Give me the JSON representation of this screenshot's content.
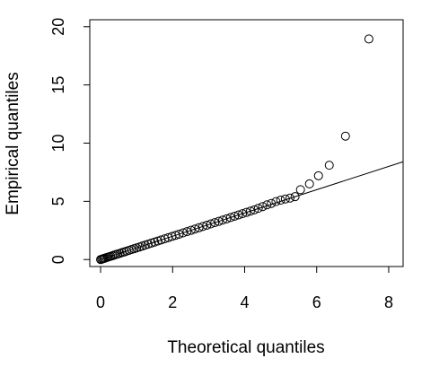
{
  "chart_data": {
    "type": "scatter",
    "title": "",
    "xlabel": "Theoretical quantiles",
    "ylabel": "Empirical quantiles",
    "xlim": [
      -0.3,
      8.4
    ],
    "ylim": [
      -0.6,
      20.6
    ],
    "x_ticks": [
      0,
      2,
      4,
      6,
      8
    ],
    "y_ticks": [
      0,
      5,
      10,
      15,
      20
    ],
    "grid": false,
    "reference_line": {
      "x": [
        0,
        8.5
      ],
      "y": [
        0,
        8.4
      ]
    },
    "points": [
      {
        "x": 0.0,
        "y": 0.0
      },
      {
        "x": 0.03,
        "y": 0.03
      },
      {
        "x": 0.06,
        "y": 0.06
      },
      {
        "x": 0.09,
        "y": 0.09
      },
      {
        "x": 0.12,
        "y": 0.12
      },
      {
        "x": 0.16,
        "y": 0.16
      },
      {
        "x": 0.2,
        "y": 0.2
      },
      {
        "x": 0.24,
        "y": 0.24
      },
      {
        "x": 0.28,
        "y": 0.28
      },
      {
        "x": 0.33,
        "y": 0.33
      },
      {
        "x": 0.38,
        "y": 0.38
      },
      {
        "x": 0.43,
        "y": 0.43
      },
      {
        "x": 0.48,
        "y": 0.48
      },
      {
        "x": 0.54,
        "y": 0.54
      },
      {
        "x": 0.6,
        "y": 0.6
      },
      {
        "x": 0.66,
        "y": 0.66
      },
      {
        "x": 0.72,
        "y": 0.72
      },
      {
        "x": 0.79,
        "y": 0.79
      },
      {
        "x": 0.86,
        "y": 0.86
      },
      {
        "x": 0.93,
        "y": 0.93
      },
      {
        "x": 1.0,
        "y": 1.0
      },
      {
        "x": 1.08,
        "y": 1.08
      },
      {
        "x": 1.16,
        "y": 1.16
      },
      {
        "x": 1.24,
        "y": 1.24
      },
      {
        "x": 1.32,
        "y": 1.32
      },
      {
        "x": 1.41,
        "y": 1.41
      },
      {
        "x": 1.5,
        "y": 1.5
      },
      {
        "x": 1.59,
        "y": 1.59
      },
      {
        "x": 1.68,
        "y": 1.68
      },
      {
        "x": 1.78,
        "y": 1.78
      },
      {
        "x": 1.88,
        "y": 1.88
      },
      {
        "x": 1.98,
        "y": 1.98
      },
      {
        "x": 2.08,
        "y": 2.08
      },
      {
        "x": 2.18,
        "y": 2.18
      },
      {
        "x": 2.29,
        "y": 2.29
      },
      {
        "x": 2.4,
        "y": 2.4
      },
      {
        "x": 2.51,
        "y": 2.51
      },
      {
        "x": 2.62,
        "y": 2.62
      },
      {
        "x": 2.73,
        "y": 2.73
      },
      {
        "x": 2.84,
        "y": 2.84
      },
      {
        "x": 2.95,
        "y": 2.95
      },
      {
        "x": 3.06,
        "y": 3.06
      },
      {
        "x": 3.17,
        "y": 3.17
      },
      {
        "x": 3.28,
        "y": 3.28
      },
      {
        "x": 3.39,
        "y": 3.39
      },
      {
        "x": 3.5,
        "y": 3.5
      },
      {
        "x": 3.61,
        "y": 3.61
      },
      {
        "x": 3.72,
        "y": 3.72
      },
      {
        "x": 3.83,
        "y": 3.83
      },
      {
        "x": 3.94,
        "y": 3.94
      },
      {
        "x": 4.05,
        "y": 4.05
      },
      {
        "x": 4.16,
        "y": 4.16
      },
      {
        "x": 4.27,
        "y": 4.27
      },
      {
        "x": 4.38,
        "y": 4.4
      },
      {
        "x": 4.5,
        "y": 4.55
      },
      {
        "x": 4.62,
        "y": 4.7
      },
      {
        "x": 4.74,
        "y": 4.82
      },
      {
        "x": 4.87,
        "y": 4.98
      },
      {
        "x": 5.0,
        "y": 5.1
      },
      {
        "x": 5.13,
        "y": 5.2
      },
      {
        "x": 5.26,
        "y": 5.28
      },
      {
        "x": 5.4,
        "y": 5.4
      },
      {
        "x": 5.55,
        "y": 6.0
      },
      {
        "x": 5.8,
        "y": 6.5
      },
      {
        "x": 6.05,
        "y": 7.2
      },
      {
        "x": 6.35,
        "y": 8.1
      },
      {
        "x": 6.8,
        "y": 10.6
      },
      {
        "x": 7.45,
        "y": 18.95
      }
    ]
  }
}
